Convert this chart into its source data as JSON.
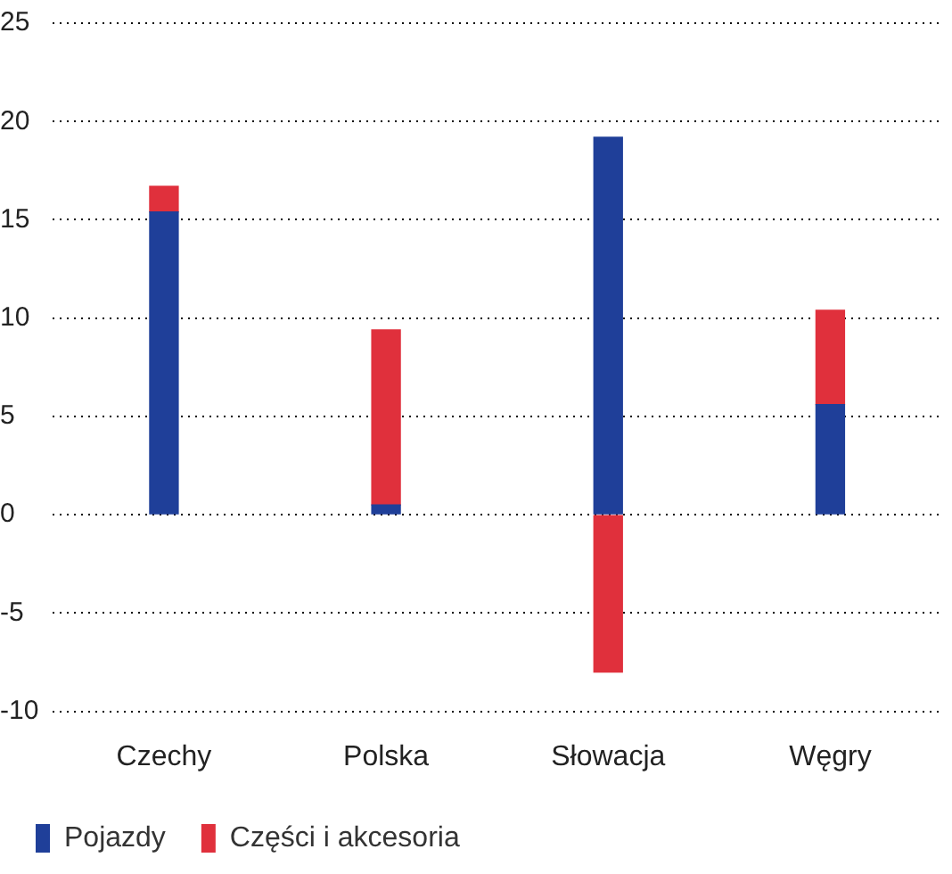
{
  "chart_data": {
    "type": "bar",
    "stacked": true,
    "categories": [
      "Czechy",
      "Polska",
      "Słowacja",
      "Węgry"
    ],
    "series": [
      {
        "name": "Pojazdy",
        "color": "#1f3f99",
        "values": [
          15.4,
          0.5,
          19.2,
          5.6
        ]
      },
      {
        "name": "Części i akcesoria",
        "color": "#e0303c",
        "values": [
          1.3,
          8.9,
          -8.0,
          4.8
        ]
      }
    ],
    "ylim": [
      -10,
      25
    ],
    "yticks": [
      -10,
      -5,
      0,
      5,
      10,
      15,
      20,
      25
    ],
    "grid": "y",
    "legend": "bottom"
  }
}
